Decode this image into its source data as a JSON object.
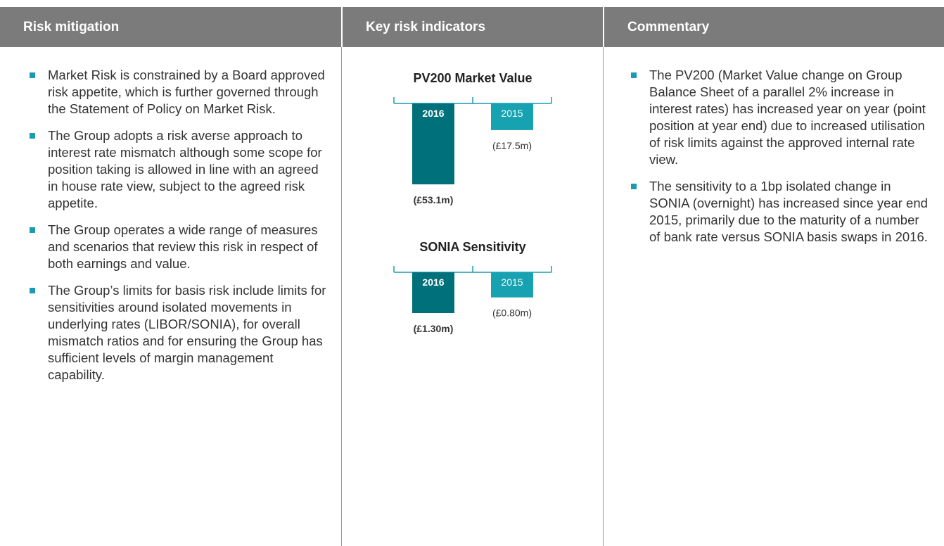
{
  "header": {
    "columns": [
      "Risk mitigation",
      "Key risk indicators",
      "Commentary"
    ]
  },
  "mitigation": [
    "Market Risk is constrained by a Board approved risk appetite, which is further governed through the Statement of Policy on Market Risk.",
    "The Group adopts a risk averse approach to interest rate mismatch although some scope for position taking is allowed in line with an agreed in house rate view, subject to the agreed risk appetite.",
    "The Group operates a wide range of measures and scenarios that review this risk in respect of both earnings and value.",
    "The Group’s limits for basis risk include limits for sensitivities around isolated movements in underlying rates (LIBOR/SONIA), for overall mismatch ratios and for ensuring the Group has sufficient levels of margin management capability."
  ],
  "kri": [
    {
      "type": "bar",
      "title": "PV200 Market Value",
      "categories": [
        "2016",
        "2015"
      ],
      "values": [
        -53.1,
        -17.5
      ],
      "value_labels": [
        "(£53.1m)",
        "(£17.5m)"
      ],
      "colors": [
        "#00707a",
        "#17a2b2"
      ]
    },
    {
      "type": "bar",
      "title": "SONIA Sensitivity",
      "categories": [
        "2016",
        "2015"
      ],
      "values": [
        -1.3,
        -0.8
      ],
      "value_labels": [
        "(£1.30m)",
        "(£0.80m)"
      ],
      "colors": [
        "#00707a",
        "#17a2b2"
      ]
    }
  ],
  "commentary": [
    "The PV200 (Market Value change on Group Balance Sheet of a parallel 2% increase in interest rates) has increased year on year (point position at year end) due to increased utilisation of risk limits against the approved internal rate view.",
    "The sensitivity to a 1bp isolated change in SONIA (overnight) has increased since year end 2015, primarily due to the maturity of a number of bank rate versus SONIA basis swaps in 2016."
  ]
}
